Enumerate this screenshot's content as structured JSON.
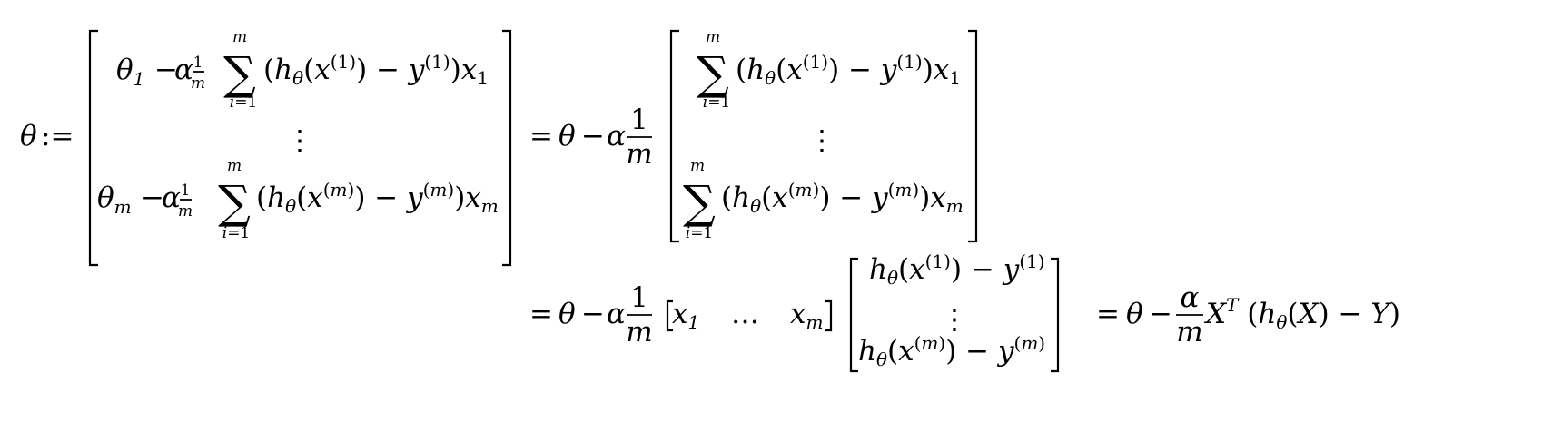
{
  "equation": {
    "lhs": "θ :=",
    "matrix1": {
      "row1": {
        "theta": "θ",
        "theta_sub": "1",
        "minus_alpha": "− α",
        "frac_num": "1",
        "frac_den": "m",
        "sum_upper": "m",
        "sum_lower": "i=1",
        "sum_symbol": "∑",
        "body": "(hθ(x(1)) − y(1))x1"
      },
      "vdots": "⋮",
      "row3": {
        "theta": "θ",
        "theta_sub": "m",
        "minus_alpha": "− α",
        "frac_num": "1",
        "frac_den": "m",
        "sum_upper": "m",
        "sum_lower": "i=1",
        "sum_symbol": "∑",
        "body": "(hθ(x(m)) − y(m))xm"
      }
    },
    "step1": {
      "prefix": "= θ − α",
      "frac_num": "1",
      "frac_den": "m",
      "matrix": {
        "row1": {
          "sum_upper": "m",
          "sum_lower": "i=1",
          "body": "(hθ(x(1)) − y(1))x1"
        },
        "vdots": "⋮",
        "row3": {
          "sum_upper": "m",
          "sum_lower": "i=1",
          "body": "(hθ(x(m)) − y(m))xm"
        }
      }
    },
    "step2": {
      "prefix": "= θ − α",
      "frac_num": "1",
      "frac_den": "m",
      "row_vector": [
        "x1",
        "…",
        "xm"
      ],
      "col_vector": [
        "hθ(x(1)) − y(1)",
        "⋮",
        "hθ(x(m)) − y(m)"
      ]
    },
    "step3": {
      "prefix": "= θ −",
      "frac_num": "α",
      "frac_den": "m",
      "tail": "XT (hθ(X) − Y)"
    }
  }
}
